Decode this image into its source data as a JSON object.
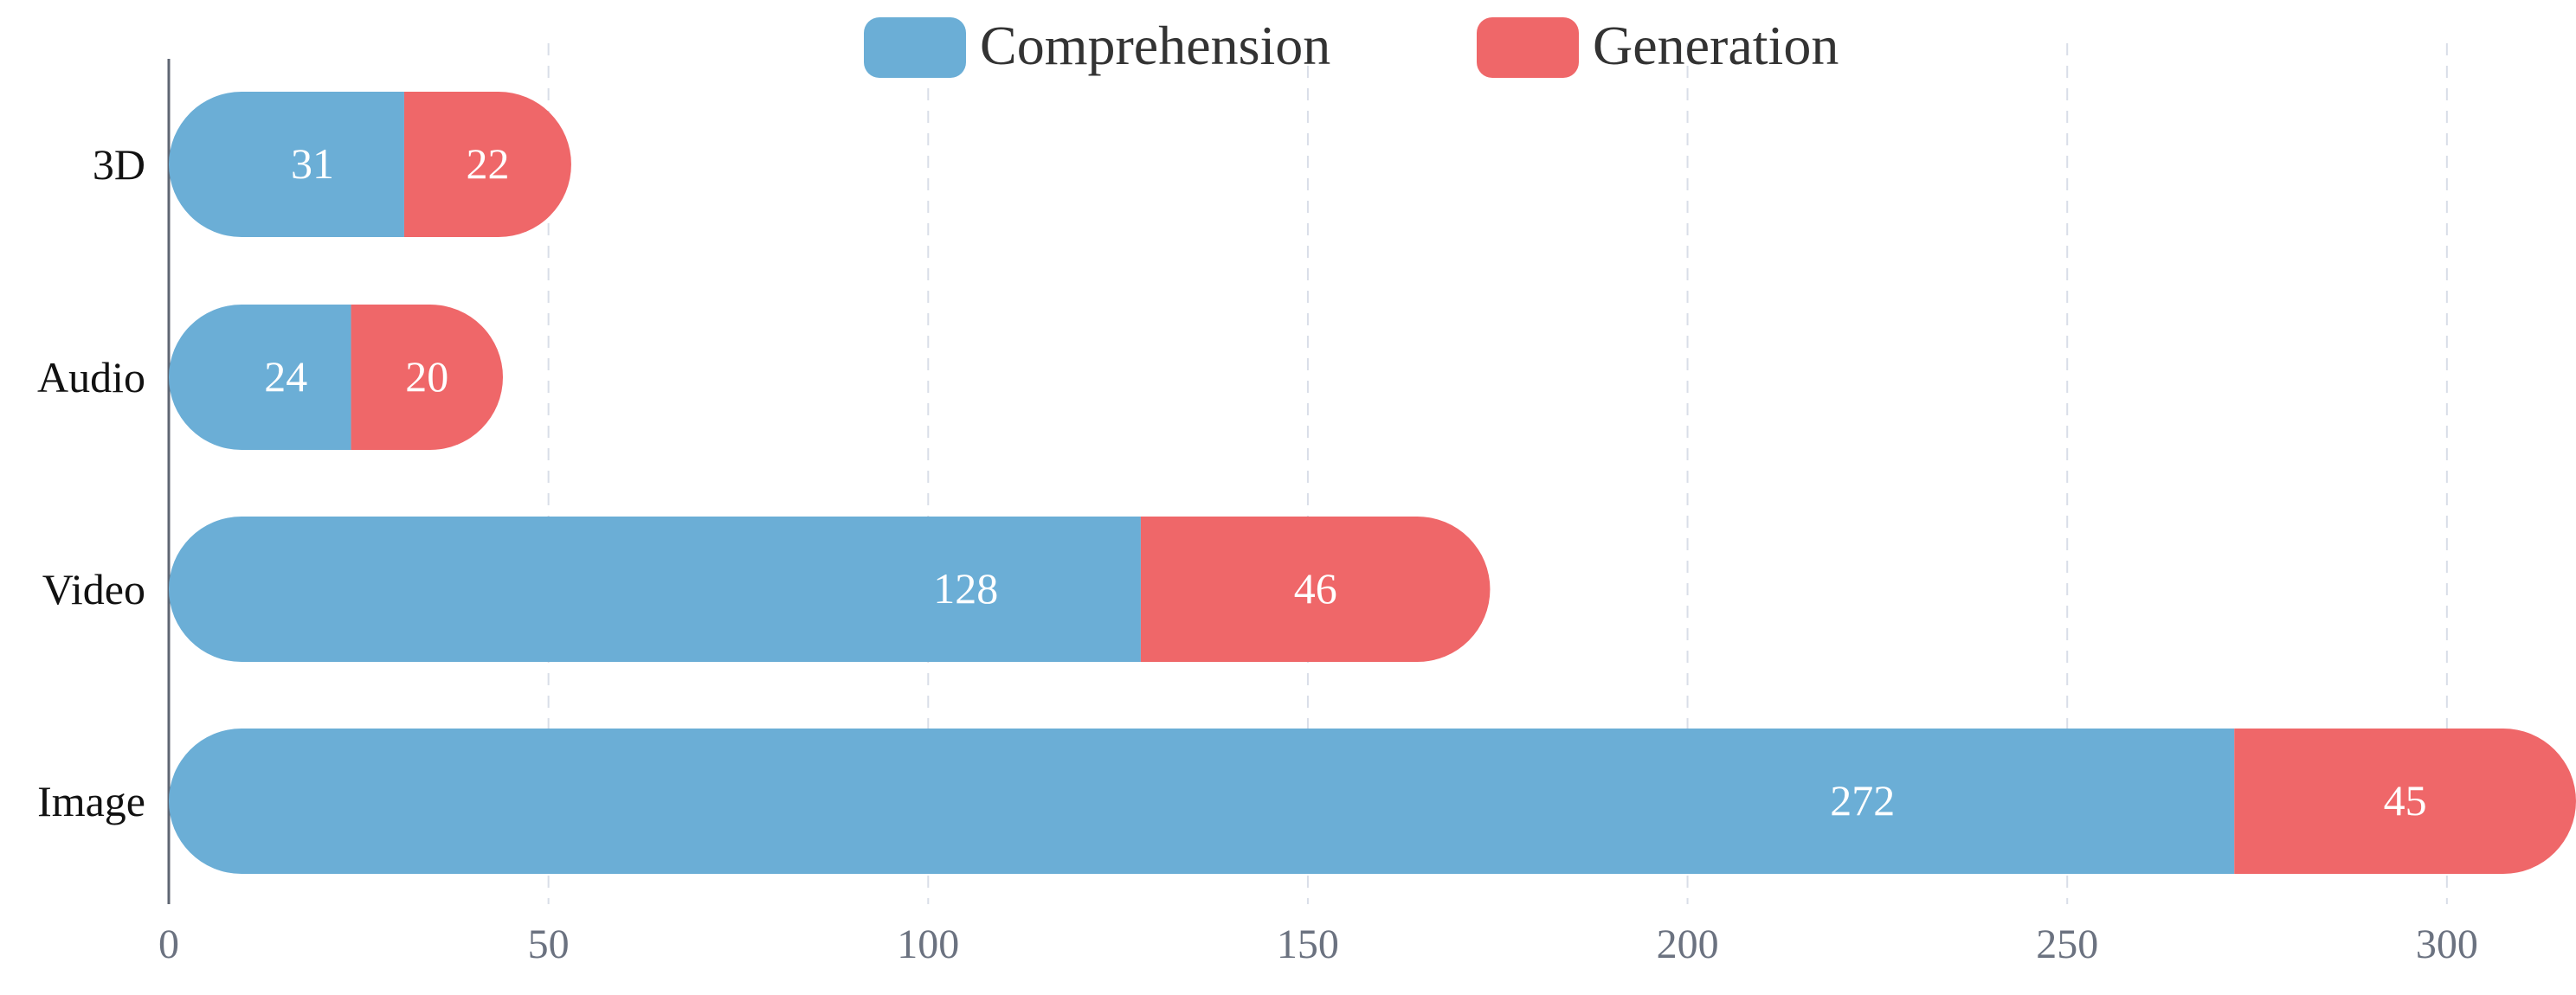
{
  "chart_data": {
    "type": "bar",
    "orientation": "horizontal",
    "stacked": true,
    "categories": [
      "3D",
      "Audio",
      "Video",
      "Image"
    ],
    "series": [
      {
        "name": "Comprehension",
        "values": [
          31,
          24,
          128,
          272
        ],
        "color": "#6baed6"
      },
      {
        "name": "Generation",
        "values": [
          22,
          20,
          46,
          45
        ],
        "color": "#ef6769"
      }
    ],
    "x_ticks": [
      0,
      50,
      100,
      150,
      200,
      250,
      300
    ],
    "xlim": [
      0,
      317
    ],
    "grid": true,
    "legend_position": "top-center",
    "title": "",
    "xlabel": "",
    "ylabel": ""
  },
  "colors": {
    "grid": "#d9dee8",
    "axis": "#5f6673",
    "tick_text": "#6b7280",
    "category_text": "#111111",
    "legend_text": "#333333",
    "value_text": "#ffffff"
  }
}
